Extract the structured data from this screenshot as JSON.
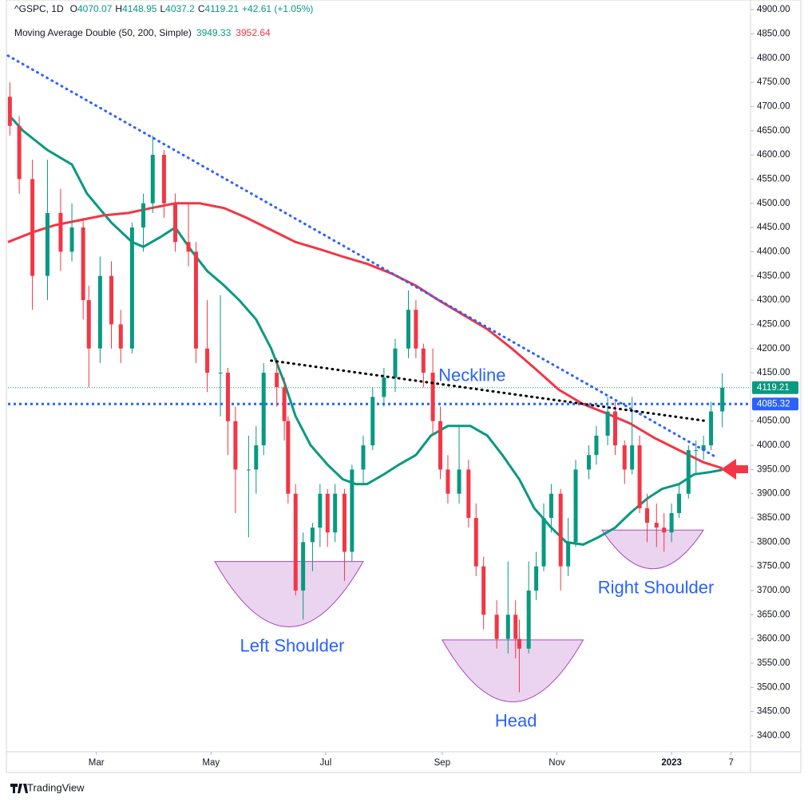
{
  "chart_data": {
    "type": "candlestick",
    "symbol": "^GSPC, 1D",
    "ohlc_labels": [
      "O",
      "H",
      "L",
      "C"
    ],
    "change": "+42.61 (+1.05%)",
    "indicator": "Moving Average Double (50, 200, Simple)",
    "up_color": "#089981",
    "down_color": "#f23645",
    "x": [
      1,
      6,
      13,
      21,
      28,
      34,
      40,
      43,
      49,
      55,
      60,
      66,
      72,
      77,
      83,
      89,
      96,
      100,
      106,
      113,
      117,
      121,
      128,
      132,
      136,
      143,
      147,
      149,
      153,
      157,
      162,
      166,
      170,
      174,
      179,
      183,
      189,
      194,
      200,
      206,
      213,
      217,
      221,
      226,
      230,
      234,
      240,
      245,
      249,
      253,
      260,
      266,
      270,
      272,
      277,
      281,
      285,
      289,
      294,
      298,
      302,
      309,
      313,
      319,
      323,
      328,
      332,
      336,
      340,
      345,
      349,
      353,
      357,
      362,
      366,
      370,
      374,
      380
    ],
    "open": [
      4720,
      4660,
      4550,
      4350,
      4480,
      4400,
      4450,
      4300,
      4200,
      4350,
      4250,
      4200,
      4450,
      4500,
      4600,
      4500,
      4420,
      4400,
      4200,
      4150,
      4150,
      4050,
      3950,
      3950,
      4000,
      4150,
      4120,
      4050,
      3900,
      3700,
      3800,
      3830,
      3900,
      3820,
      3900,
      3780,
      3950,
      4000,
      4100,
      4140,
      4200,
      4280,
      4200,
      4150,
      4050,
      3950,
      3900,
      3950,
      3850,
      3750,
      3650,
      3600,
      3650,
      3600,
      3580,
      3700,
      3750,
      3850,
      3900,
      3750,
      3800,
      3950,
      3980,
      4020,
      4070,
      4000,
      3950,
      4000,
      3870,
      3840,
      3830,
      3820,
      3860,
      3900,
      3990,
      3990,
      4000,
      4070.07
    ],
    "high": [
      4750,
      4680,
      4590,
      4590,
      4530,
      4500,
      4470,
      4330,
      4390,
      4380,
      4280,
      4460,
      4520,
      4640,
      4610,
      4520,
      4500,
      4420,
      4300,
      4310,
      4160,
      4080,
      4020,
      4040,
      4170,
      4180,
      4140,
      4060,
      3920,
      3820,
      3840,
      3920,
      3910,
      3920,
      3910,
      3960,
      4020,
      4120,
      4160,
      4220,
      4320,
      4300,
      4210,
      4200,
      4080,
      3980,
      4040,
      3970,
      3880,
      3770,
      3680,
      3760,
      3680,
      3640,
      3760,
      3780,
      3880,
      3920,
      3910,
      3850,
      3970,
      4000,
      4040,
      4100,
      4090,
      4010,
      4100,
      4020,
      3900,
      3880,
      3860,
      3880,
      3920,
      4000,
      4010,
      4020,
      4090,
      4148.95
    ],
    "low": [
      4640,
      4520,
      4280,
      4300,
      4360,
      4380,
      4260,
      4120,
      4170,
      4200,
      4170,
      4190,
      4400,
      4480,
      4470,
      4400,
      4370,
      4170,
      4110,
      4060,
      3980,
      3860,
      3810,
      3900,
      3980,
      4080,
      4010,
      3880,
      3690,
      3640,
      3740,
      3790,
      3790,
      3800,
      3720,
      3760,
      3920,
      3990,
      4080,
      4110,
      4180,
      4180,
      4120,
      4020,
      3930,
      3880,
      3880,
      3830,
      3730,
      3620,
      3580,
      3570,
      3560,
      3490,
      3570,
      3680,
      3740,
      3820,
      3700,
      3730,
      3790,
      3930,
      3960,
      4000,
      3980,
      3920,
      3940,
      3860,
      3800,
      3790,
      3780,
      3800,
      3850,
      3890,
      3940,
      3970,
      3990,
      4037.2
    ],
    "close": [
      4660,
      4550,
      4350,
      4480,
      4400,
      4450,
      4300,
      4200,
      4350,
      4250,
      4200,
      4450,
      4500,
      4600,
      4500,
      4420,
      4400,
      4200,
      4150,
      4150,
      4050,
      3950,
      3950,
      4000,
      4150,
      4120,
      4050,
      3900,
      3700,
      3800,
      3830,
      3900,
      3820,
      3900,
      3780,
      3950,
      4000,
      4100,
      4140,
      4200,
      4280,
      4200,
      4150,
      4050,
      3950,
      3900,
      3950,
      3850,
      3750,
      3650,
      3600,
      3650,
      3600,
      3580,
      3700,
      3750,
      3850,
      3900,
      3750,
      3800,
      3950,
      3980,
      4020,
      4070,
      4000,
      3950,
      4000,
      3870,
      3840,
      3830,
      3820,
      3860,
      3900,
      3990,
      3990,
      4000,
      4070,
      4119.21
    ],
    "series": [
      {
        "color": "#089981",
        "x": [
          1,
          8,
          21,
          34,
          42,
          55,
          66,
          72,
          81,
          89,
          98,
          106,
          115,
          123,
          132,
          140,
          147,
          153,
          161,
          170,
          178,
          185,
          191,
          200,
          208,
          217,
          225,
          234,
          246,
          255,
          263,
          272,
          280,
          289,
          297,
          306,
          314,
          323,
          331,
          340,
          348,
          357,
          365,
          374,
          380
        ],
        "values": [
          4680,
          4650,
          4610,
          4580,
          4520,
          4460,
          4420,
          4410,
          4430,
          4450,
          4400,
          4360,
          4330,
          4300,
          4260,
          4200,
          4130,
          4060,
          4000,
          3960,
          3930,
          3920,
          3920,
          3940,
          3960,
          3980,
          4020,
          4040,
          4040,
          4020,
          3980,
          3930,
          3870,
          3830,
          3800,
          3795,
          3810,
          3830,
          3860,
          3890,
          3910,
          3920,
          3940,
          3945,
          3949.33
        ]
      },
      {
        "color": "#f23645",
        "x": [
          0,
          13,
          25,
          38,
          51,
          64,
          76,
          89,
          102,
          115,
          127,
          140,
          153,
          166,
          178,
          191,
          204,
          217,
          229,
          242,
          255,
          268,
          280,
          293,
          306,
          319,
          331,
          344,
          357,
          370,
          380
        ],
        "values": [
          4420,
          4440,
          4455,
          4465,
          4475,
          4480,
          4490,
          4500,
          4500,
          4490,
          4470,
          4445,
          4420,
          4405,
          4390,
          4375,
          4355,
          4330,
          4300,
          4270,
          4240,
          4200,
          4160,
          4115,
          4085,
          4065,
          4045,
          4015,
          3990,
          3965,
          3952.64
        ]
      }
    ],
    "xlim": [
      0,
      395
    ],
    "xticks": [
      {
        "value": 47,
        "label": "Mar"
      },
      {
        "value": 108,
        "label": "May"
      },
      {
        "value": 169,
        "label": "Jul"
      },
      {
        "value": 231,
        "label": "Sep"
      },
      {
        "value": 292,
        "label": "Nov"
      },
      {
        "value": 353,
        "label": "2023"
      },
      {
        "value": 384.7,
        "label": "7"
      }
    ],
    "ylim": [
      3367,
      4920
    ],
    "yticks": [
      {
        "value": 3400,
        "label": "3400.00"
      },
      {
        "value": 3450,
        "label": "3450.00"
      },
      {
        "value": 3500,
        "label": "3500.00"
      },
      {
        "value": 3550,
        "label": "3550.00"
      },
      {
        "value": 3600,
        "label": "3600.00"
      },
      {
        "value": 3650,
        "label": "3650.00"
      },
      {
        "value": 3700,
        "label": "3700.00"
      },
      {
        "value": 3750,
        "label": "3750.00"
      },
      {
        "value": 3800,
        "label": "3800.00"
      },
      {
        "value": 3850,
        "label": "3850.00"
      },
      {
        "value": 3900,
        "label": "3900.00"
      },
      {
        "value": 3950,
        "label": "3950.00"
      },
      {
        "value": 4000,
        "label": "4000.00"
      },
      {
        "value": 4050,
        "label": "4050.00"
      },
      {
        "value": 4150,
        "label": "4150.00"
      },
      {
        "value": 4200,
        "label": "4200.00"
      },
      {
        "value": 4250,
        "label": "4250.00"
      },
      {
        "value": 4300,
        "label": "4300.00"
      },
      {
        "value": 4350,
        "label": "4350.00"
      },
      {
        "value": 4400,
        "label": "4400.00"
      },
      {
        "value": 4450,
        "label": "4450.00"
      },
      {
        "value": 4500,
        "label": "4500.00"
      },
      {
        "value": 4550,
        "label": "4550.00"
      },
      {
        "value": 4600,
        "label": "4600.00"
      },
      {
        "value": 4650,
        "label": "4650.00"
      },
      {
        "value": 4700,
        "label": "4700.00"
      },
      {
        "value": 4750,
        "label": "4750.00"
      },
      {
        "value": 4800,
        "label": "4800.00"
      },
      {
        "value": 4850,
        "label": "4850.00"
      },
      {
        "value": 4900,
        "label": "4900.00"
      }
    ],
    "price_line": 4085.32,
    "trendlines": [
      {
        "color": "#2962ff",
        "x": [
          0,
          377
        ],
        "values": [
          4805,
          3975
        ]
      },
      {
        "color": "#000000",
        "x": [
          140,
          372
        ],
        "values": [
          4175,
          4050
        ]
      }
    ],
    "annotation": "Neckline",
    "patterns": [
      {
        "label": "Left Shoulder",
        "x": [
          110,
          189
        ],
        "values": [
          3760,
          3625
        ]
      },
      {
        "label": "Head",
        "x": [
          231,
          306
        ],
        "values": [
          3598,
          3470
        ]
      },
      {
        "label": "Right Shoulder",
        "x": [
          316,
          370
        ],
        "values": [
          3825,
          3745
        ]
      }
    ],
    "watermark": "TradingView"
  }
}
